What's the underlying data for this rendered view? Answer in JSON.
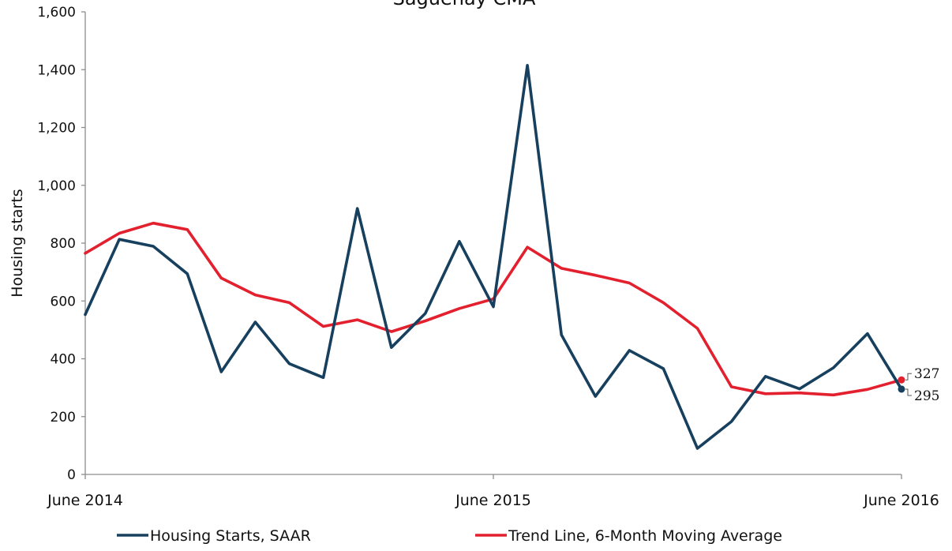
{
  "chart_data": {
    "type": "line",
    "title": "Saguenay CMA",
    "xlabel": "",
    "ylabel": "Housing starts",
    "ylim": [
      0,
      1600
    ],
    "yticks": [
      0,
      200,
      400,
      600,
      800,
      1000,
      1200,
      1400,
      1600
    ],
    "ytick_labels": [
      "0",
      "200",
      "400",
      "600",
      "800",
      "1,000",
      "1,200",
      "1,400",
      "1,600"
    ],
    "x_labels": [
      {
        "index": 0,
        "label": "June 2014"
      },
      {
        "index": 12,
        "label": "June 2015"
      },
      {
        "index": 24,
        "label": "June 2016"
      }
    ],
    "grid": false,
    "legend_position": "bottom",
    "series": [
      {
        "name": "Housing Starts, SAAR",
        "color": "#17405e",
        "values": [
          553,
          813,
          789,
          694,
          355,
          527,
          383,
          335,
          920,
          439,
          557,
          806,
          580,
          1415,
          483,
          270,
          429,
          366,
          90,
          183,
          339,
          296,
          369,
          487,
          295
        ]
      },
      {
        "name": "Trend Line, 6-Month Moving Average",
        "color": "#e3202e",
        "values": [
          765,
          834,
          869,
          847,
          679,
          621,
          594,
          512,
          535,
          494,
          531,
          574,
          607,
          786,
          713,
          689,
          662,
          594,
          505,
          303,
          279,
          282,
          275,
          294,
          327
        ]
      }
    ],
    "annotations": [
      {
        "series": "Trend Line, 6-Month Moving Average",
        "index": 24,
        "label": "327"
      },
      {
        "series": "Housing Starts, SAAR",
        "index": 24,
        "label": "295"
      }
    ]
  }
}
